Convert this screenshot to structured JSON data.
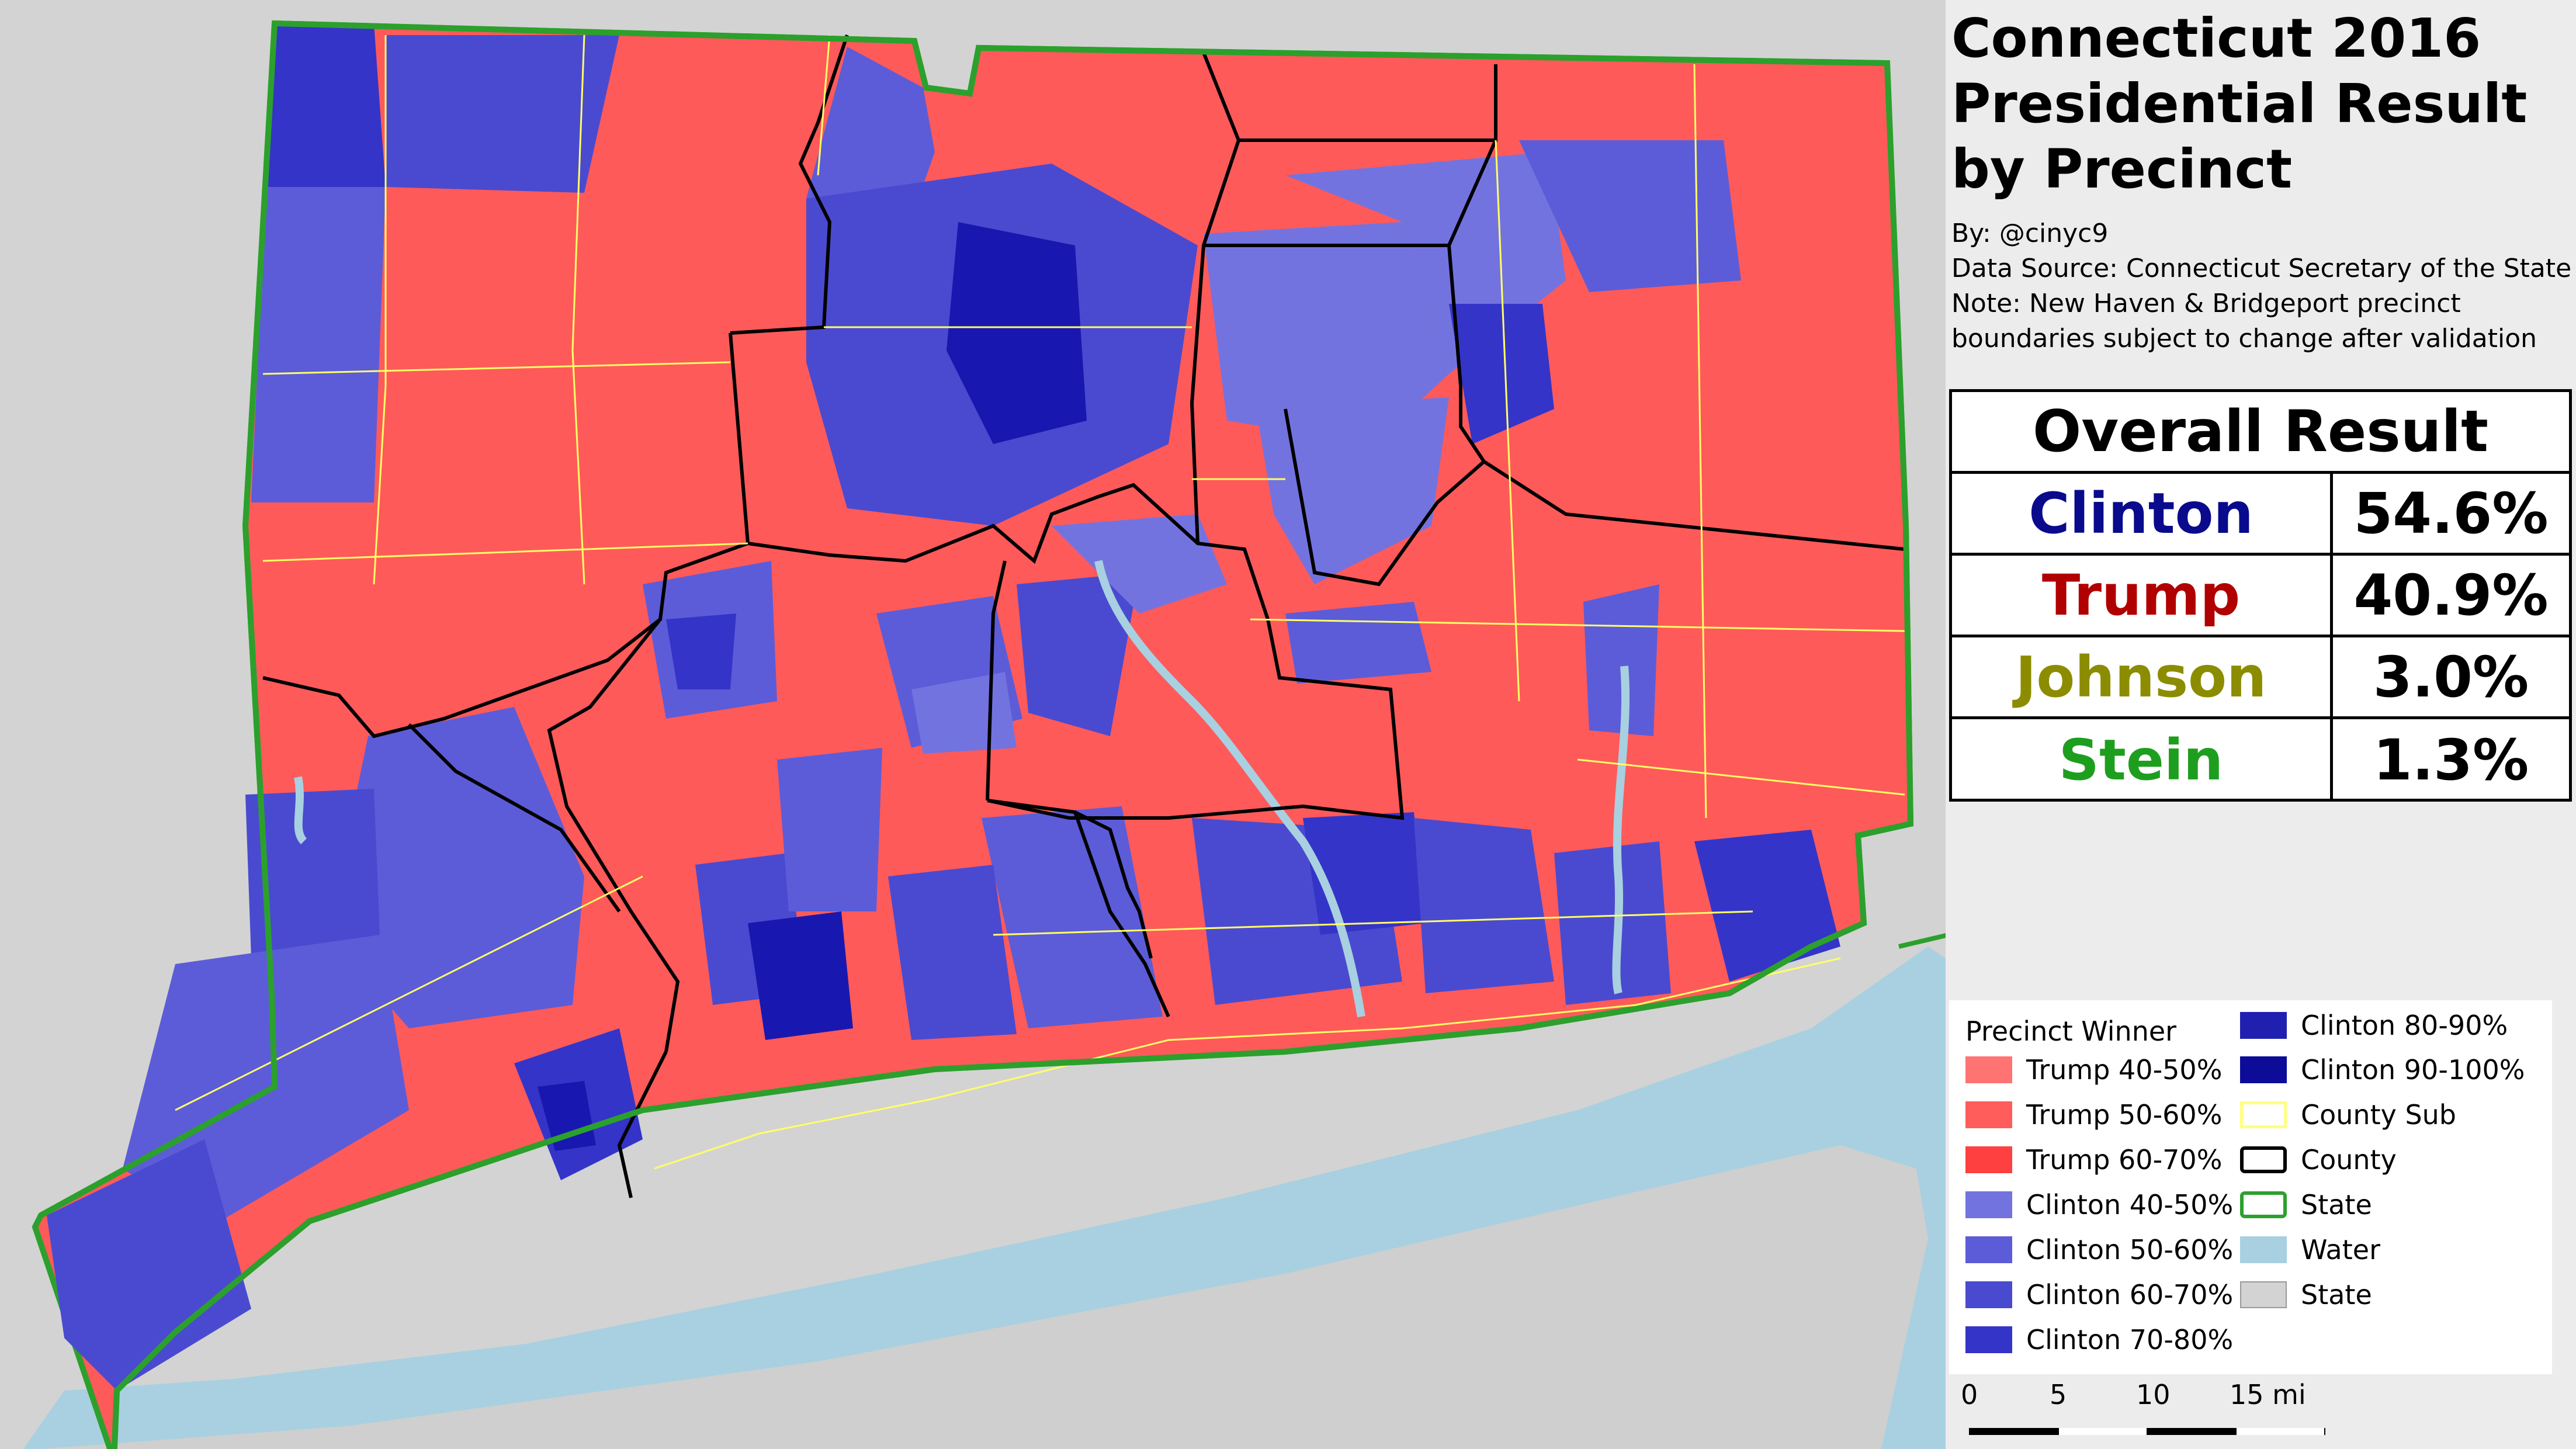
{
  "title": {
    "line1": "Connecticut 2016",
    "line2": "Presidential Result",
    "line3": "by Precinct"
  },
  "meta": {
    "by": "By: @cinyc9",
    "source": "Data Source: Connecticut Secretary of the State",
    "note1": "Note: New Haven & Bridgeport precinct",
    "note2": "boundaries subject to change after validation"
  },
  "overall": {
    "header": "Overall Result",
    "rows": [
      {
        "name": "Clinton",
        "pct": "54.6%",
        "color": "#0a0a8c"
      },
      {
        "name": "Trump",
        "pct": "40.9%",
        "color": "#b00000"
      },
      {
        "name": "Johnson",
        "pct": "3.0%",
        "color": "#8c8c00"
      },
      {
        "name": "Stein",
        "pct": "1.3%",
        "color": "#1e9e1e"
      }
    ]
  },
  "legend": {
    "title": "Precinct Winner",
    "items": [
      {
        "label": "Trump 40-50%",
        "color": "#ff7373"
      },
      {
        "label": "Trump 50-60%",
        "color": "#ff5c5c"
      },
      {
        "label": "Trump 60-70%",
        "color": "#ff4040"
      },
      {
        "label": "Clinton 40-50%",
        "color": "#7373e0"
      },
      {
        "label": "Clinton 50-60%",
        "color": "#5c5cd8"
      },
      {
        "label": "Clinton 60-70%",
        "color": "#4a4ad0"
      },
      {
        "label": "Clinton 70-80%",
        "color": "#3434c8"
      },
      {
        "label": "Clinton 80-90%",
        "color": "#2020b0"
      },
      {
        "label": "Clinton 90-100%",
        "color": "#0c0c99"
      },
      {
        "label": "County Sub",
        "color": "#ffff80"
      },
      {
        "label": "County",
        "color": "#000000"
      },
      {
        "label": "State",
        "color": "#2ca02c"
      },
      {
        "label": "Water",
        "color": "#a8d0e0"
      },
      {
        "label": "State",
        "color": "#d3d3d3"
      }
    ]
  },
  "scale": {
    "ticks": [
      "0",
      "5",
      "10",
      "15 mi"
    ]
  },
  "colors": {
    "background": "#d3d3d3",
    "water": "#a8d0e0",
    "state_border": "#2ca02c"
  }
}
